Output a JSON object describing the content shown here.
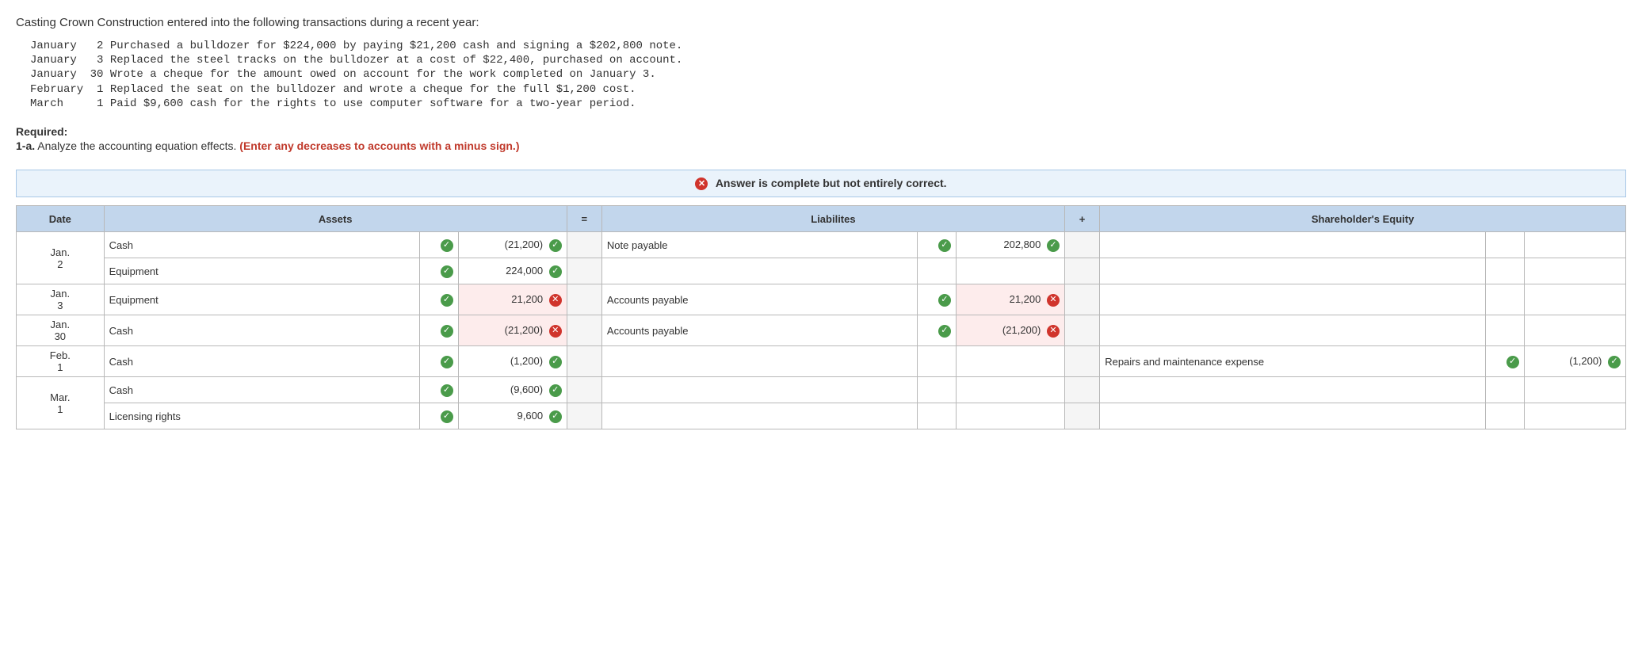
{
  "intro": "Casting Crown Construction entered into the following transactions during a recent year:",
  "transactions_block": "January   2 Purchased a bulldozer for $224,000 by paying $21,200 cash and signing a $202,800 note.\nJanuary   3 Replaced the steel tracks on the bulldozer at a cost of $22,400, purchased on account.\nJanuary  30 Wrote a cheque for the amount owed on account for the work completed on January 3.\nFebruary  1 Replaced the seat on the bulldozer and wrote a cheque for the full $1,200 cost.\nMarch     1 Paid $9,600 cash for the rights to use computer software for a two-year period.",
  "required_label": "Required:",
  "q_label": "1-a.",
  "q_text": "Analyze the accounting equation effects. ",
  "q_instr": "(Enter any decreases to accounts with a minus sign.)",
  "banner_text": "Answer is complete but not entirely correct.",
  "headers": {
    "date": "Date",
    "assets": "Assets",
    "eq": "=",
    "liab": "Liabilites",
    "plus": "+",
    "equity": "Shareholder's Equity"
  },
  "rows": [
    {
      "date": "Jan. 2",
      "date_rowspan": 2,
      "asset_acct": "Cash",
      "asset_ok": true,
      "asset_num": "(21,200)",
      "asset_num_ok": true,
      "liab_acct": "Note payable",
      "liab_ok": true,
      "liab_num": "202,800",
      "liab_num_ok": true,
      "eq_acct": "",
      "eq_num": ""
    },
    {
      "date": "",
      "asset_acct": "Equipment",
      "asset_ok": true,
      "asset_num": "224,000",
      "asset_num_ok": true,
      "liab_acct": "",
      "liab_num": "",
      "eq_acct": "",
      "eq_num": ""
    },
    {
      "date": "Jan. 3",
      "asset_acct": "Equipment",
      "asset_ok": true,
      "asset_num": "21,200",
      "asset_num_ok": false,
      "liab_acct": "Accounts payable",
      "liab_ok": true,
      "liab_num": "21,200",
      "liab_num_ok": false,
      "eq_acct": "",
      "eq_num": ""
    },
    {
      "date": "Jan. 30",
      "asset_acct": "Cash",
      "asset_ok": true,
      "asset_num": "(21,200)",
      "asset_num_ok": false,
      "liab_acct": "Accounts payable",
      "liab_ok": true,
      "liab_num": "(21,200)",
      "liab_num_ok": false,
      "eq_acct": "",
      "eq_num": ""
    },
    {
      "date": "Feb. 1",
      "asset_acct": "Cash",
      "asset_ok": true,
      "asset_num": "(1,200)",
      "asset_num_ok": true,
      "liab_acct": "",
      "liab_num": "",
      "eq_acct": "Repairs and maintenance expense",
      "eq_ok": true,
      "eq_num": "(1,200)",
      "eq_num_ok": true
    },
    {
      "date": "Mar. 1",
      "date_rowspan": 2,
      "asset_acct": "Cash",
      "asset_ok": true,
      "asset_num": "(9,600)",
      "asset_num_ok": true,
      "liab_acct": "",
      "liab_num": "",
      "eq_acct": "",
      "eq_num": ""
    },
    {
      "date": "",
      "asset_acct": "Licensing rights",
      "asset_ok": true,
      "asset_num": "9,600",
      "asset_num_ok": true,
      "liab_acct": "",
      "liab_num": "",
      "eq_acct": "",
      "eq_num": ""
    }
  ],
  "colors": {
    "green": "#4a9b4a",
    "red": "#d0342c",
    "header_bg": "#c2d6ec",
    "banner_bg": "#eaf3fb",
    "wrong_bg": "#fdecec"
  }
}
